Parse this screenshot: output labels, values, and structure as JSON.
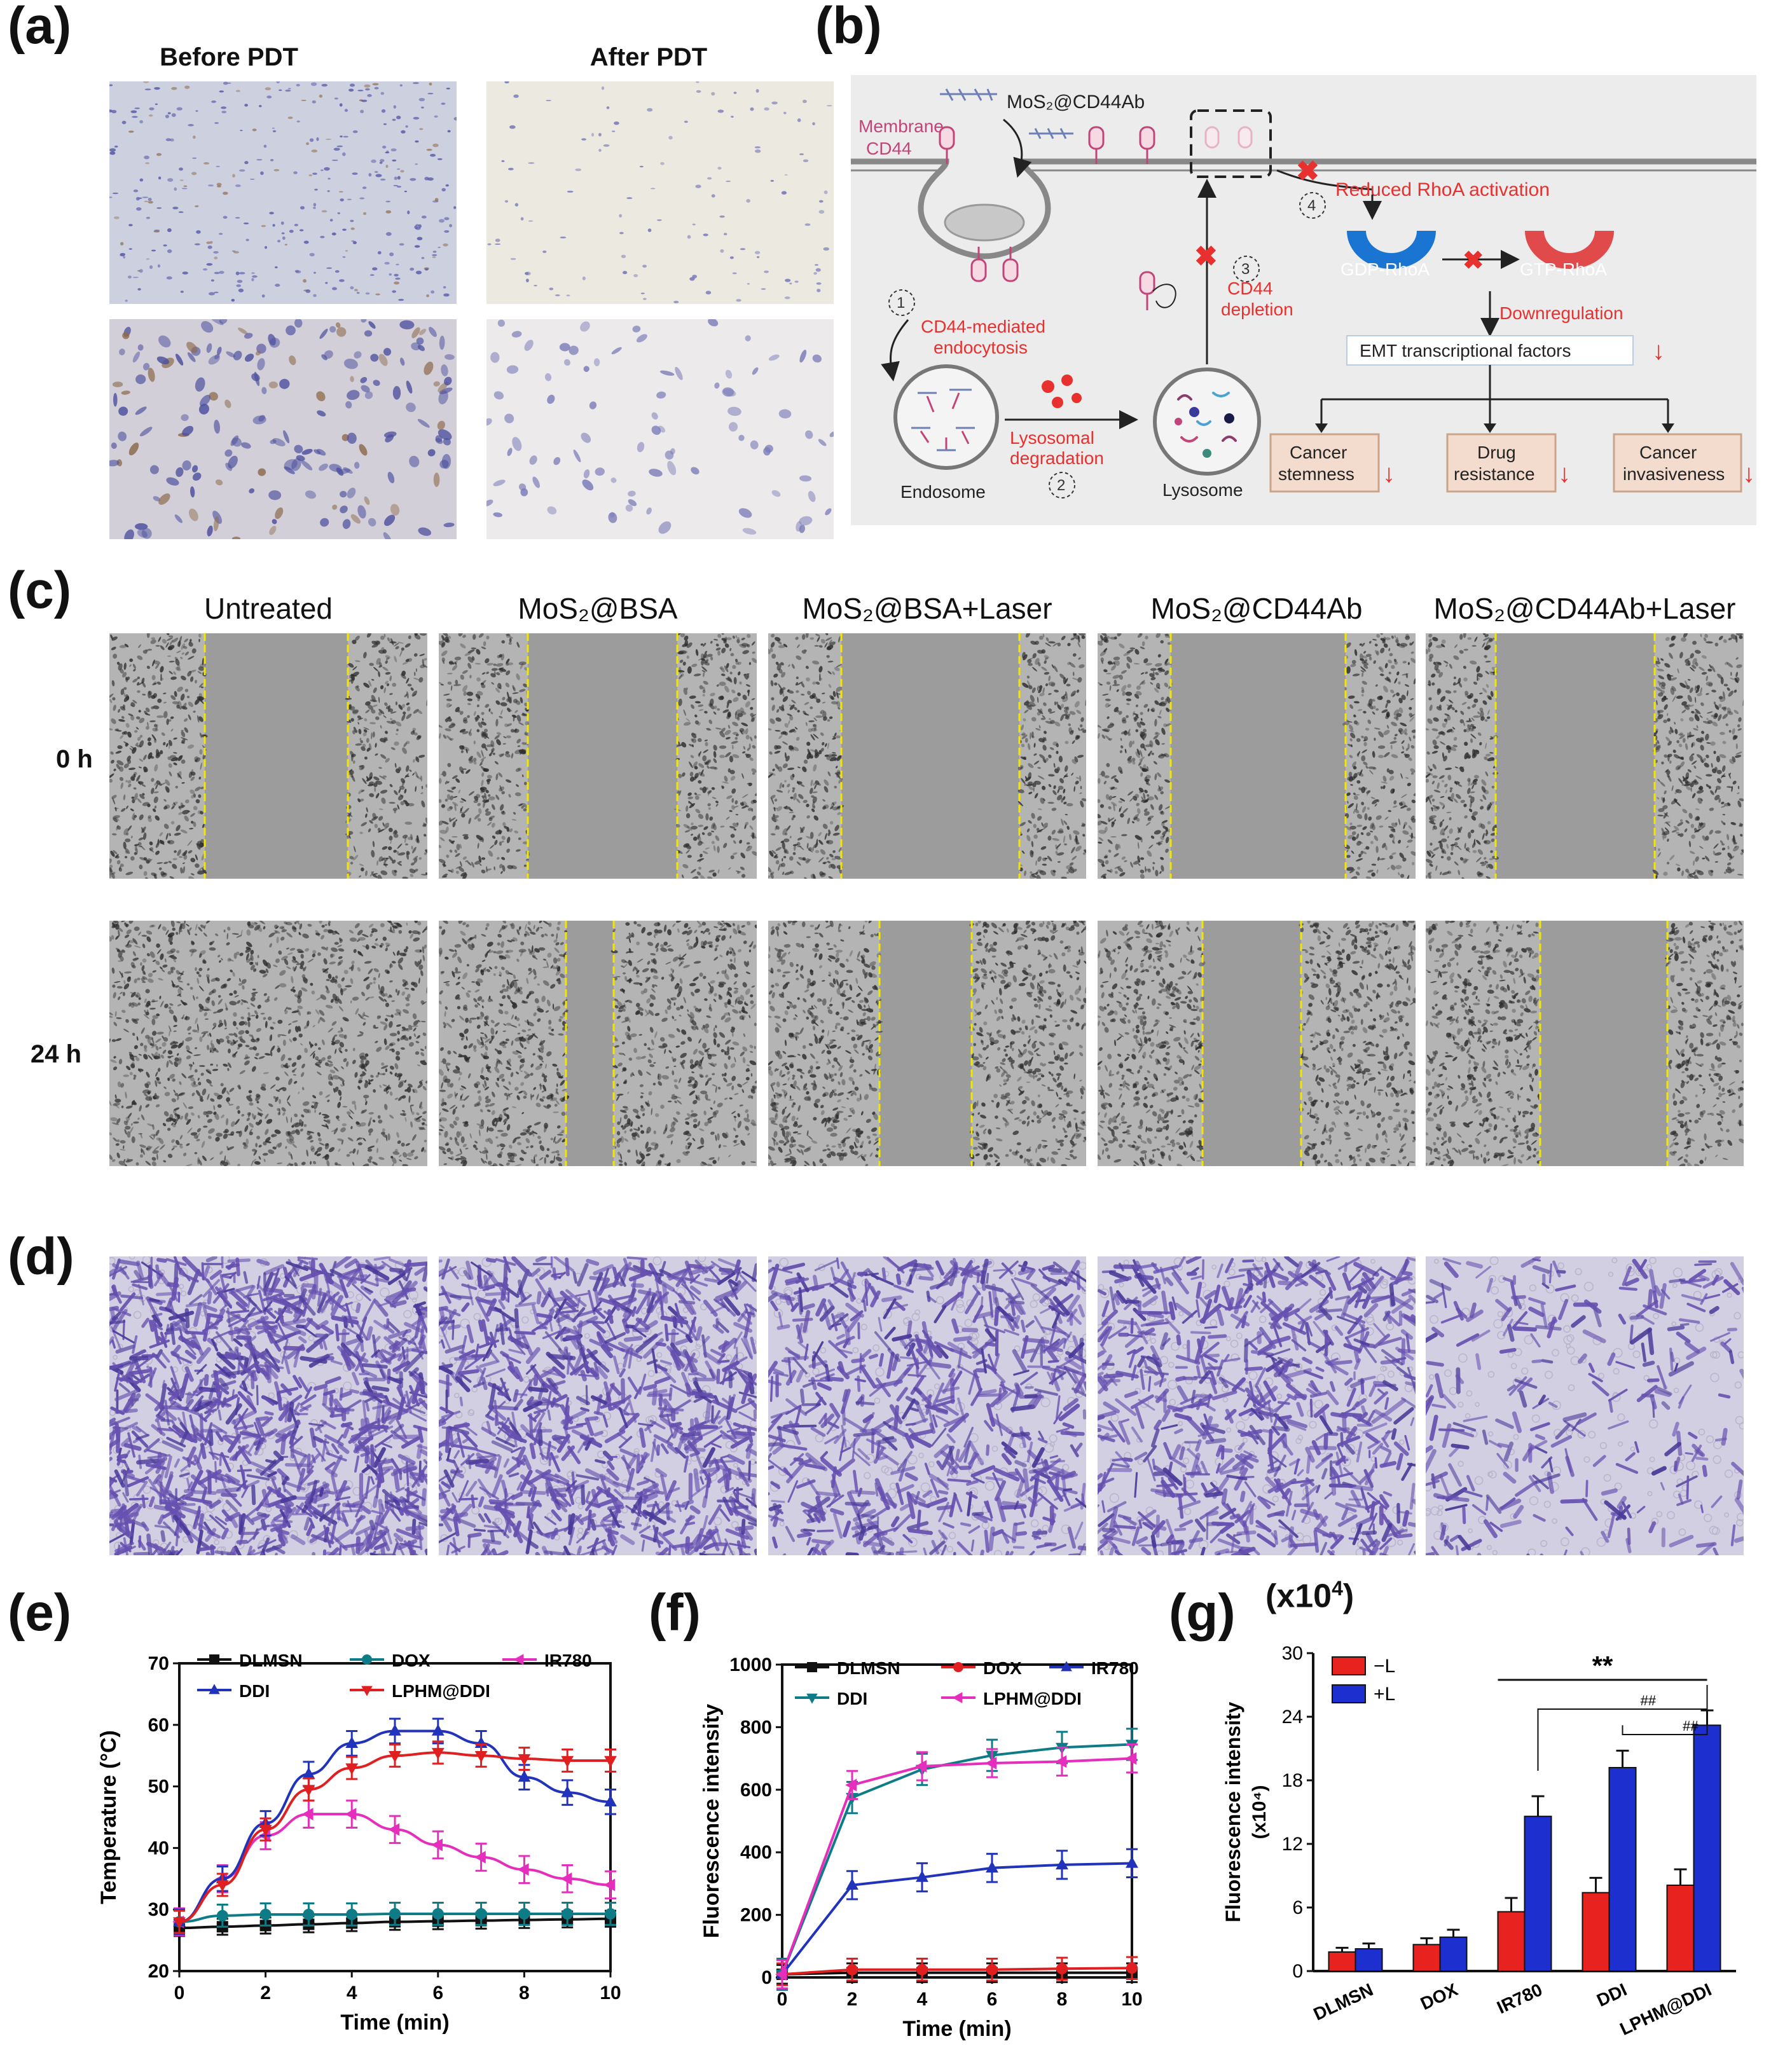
{
  "panels": {
    "a": {
      "label": "(a)",
      "columns": [
        "Before PDT",
        "After PDT"
      ]
    },
    "b": {
      "label": "(b)",
      "nanoparticle": "MoS₂@CD44Ab",
      "membrane_cd44": [
        "Membrane",
        "CD44"
      ],
      "step1": "1",
      "step2": "2",
      "step3": "3",
      "step4": "4",
      "endocytosis": [
        "CD44-mediated",
        "endocytosis"
      ],
      "lysosomal": [
        "Lysosomal",
        "degradation"
      ],
      "cd44_depletion": [
        "CD44",
        "depletion"
      ],
      "endosome": "Endosome",
      "lysosome": "Lysosome",
      "reduced_rhoa": "Reduced RhoA activation",
      "gdp_rhoa": "GDP-RhoA",
      "gtp_rhoa": "GTP-RhoA",
      "downregulation": "Downregulation",
      "emt": "EMT transcriptional factors",
      "outcomes": [
        [
          "Cancer",
          "stemness"
        ],
        [
          "Drug",
          "resistance"
        ],
        [
          "Cancer",
          "invasiveness"
        ]
      ],
      "colors": {
        "red": "#e8312f",
        "blue": "#1a75d2",
        "pink": "#c2457a",
        "box": "#f3dccd"
      }
    },
    "c": {
      "label": "(c)",
      "columns": [
        "Untreated",
        "MoS₂@BSA",
        "MoS₂@BSA+Laser",
        "MoS₂@CD44Ab",
        "MoS₂@CD44Ab+Laser"
      ],
      "rows": [
        "0 h",
        "24 h"
      ]
    },
    "d": {
      "label": "(d)"
    },
    "e": {
      "label": "(e)"
    },
    "f": {
      "label": "(f)"
    },
    "g": {
      "label": "(g)"
    }
  },
  "chart_data": [
    {
      "panel": "e",
      "type": "line",
      "xlabel": "Time (min)",
      "ylabel": "Temperature (°C)",
      "xlim": [
        0,
        10
      ],
      "ylim": [
        20,
        70
      ],
      "xticks": [
        0,
        2,
        4,
        6,
        8,
        10
      ],
      "yticks": [
        20,
        30,
        40,
        50,
        60,
        70
      ],
      "legend_position": "top",
      "x": [
        0,
        1,
        2,
        3,
        4,
        5,
        6,
        7,
        8,
        9,
        10
      ],
      "series": [
        {
          "name": "DLMSN",
          "color": "#111111",
          "marker": "square",
          "values": [
            27,
            27.2,
            27.4,
            27.6,
            27.8,
            28,
            28.1,
            28.2,
            28.3,
            28.4,
            28.5
          ],
          "error": 1.3
        },
        {
          "name": "DOX",
          "color": "#0e7c86",
          "marker": "circle",
          "values": [
            28,
            29,
            29.2,
            29.2,
            29.2,
            29.3,
            29.3,
            29.3,
            29.3,
            29.3,
            29.3
          ],
          "error": 1.8
        },
        {
          "name": "IR780",
          "color": "#e62ebc",
          "marker": "tri-left",
          "values": [
            28,
            35,
            42,
            45.5,
            45.5,
            43,
            40.5,
            38.5,
            36.5,
            35,
            34
          ],
          "error": 2.2
        },
        {
          "name": "DDI",
          "color": "#2233bb",
          "marker": "tri-up",
          "values": [
            28,
            35,
            44,
            52,
            57,
            59,
            59,
            57,
            51.5,
            49,
            47.5
          ],
          "error": 2.0
        },
        {
          "name": "LPHM@DDI",
          "color": "#e02020",
          "marker": "tri-down",
          "values": [
            28,
            34,
            43,
            49.5,
            53,
            55,
            55.5,
            55,
            54.5,
            54.2,
            54.2
          ],
          "error": 1.8
        }
      ]
    },
    {
      "panel": "f",
      "type": "line",
      "xlabel": "Time (min)",
      "ylabel": "Fluorescence intensity",
      "xlim": [
        0,
        10
      ],
      "ylim": [
        0,
        1000
      ],
      "xticks": [
        0,
        2,
        4,
        6,
        8,
        10
      ],
      "yticks": [
        0,
        200,
        400,
        600,
        800,
        1000
      ],
      "legend_position": "top",
      "x": [
        0,
        2,
        4,
        6,
        8,
        10
      ],
      "series": [
        {
          "name": "DLMSN",
          "color": "#111111",
          "marker": "square",
          "values": [
            10,
            15,
            15,
            15,
            15,
            15
          ],
          "error": 30
        },
        {
          "name": "DOX",
          "color": "#e02020",
          "marker": "circle",
          "values": [
            10,
            25,
            25,
            25,
            28,
            30
          ],
          "error": 35
        },
        {
          "name": "IR780",
          "color": "#2233bb",
          "marker": "tri-up",
          "values": [
            10,
            295,
            320,
            350,
            360,
            365
          ],
          "error": 45
        },
        {
          "name": "DDI",
          "color": "#0e7c86",
          "marker": "tri-down",
          "values": [
            10,
            575,
            665,
            710,
            735,
            745
          ],
          "error": 50
        },
        {
          "name": "LPHM@DDI",
          "color": "#e62ebc",
          "marker": "tri-left",
          "values": [
            10,
            615,
            675,
            685,
            690,
            700
          ],
          "error": 45
        }
      ]
    },
    {
      "panel": "g",
      "type": "bar",
      "ylabel": "Fluorescence intensity",
      "ylabel_unit": "(x10⁴)",
      "categories": [
        "DLMSN",
        "DOX",
        "IR780",
        "DDI",
        "LPHM@DDI"
      ],
      "ylim": [
        0,
        30
      ],
      "yticks": [
        0,
        6,
        12,
        18,
        24,
        30
      ],
      "legend_position": "top-left",
      "series": [
        {
          "name": "−L",
          "color": "#e8231f",
          "values": [
            1.8,
            2.5,
            5.6,
            7.4,
            8.1
          ],
          "errors": [
            0.4,
            0.6,
            1.3,
            1.4,
            1.5
          ]
        },
        {
          "name": "+L",
          "color": "#1d2fcf",
          "values": [
            2.1,
            3.2,
            14.6,
            19.2,
            23.2
          ],
          "errors": [
            0.5,
            0.7,
            1.9,
            1.6,
            1.4
          ]
        }
      ],
      "annotations": {
        "double_star": "**",
        "hash": "##"
      }
    }
  ]
}
